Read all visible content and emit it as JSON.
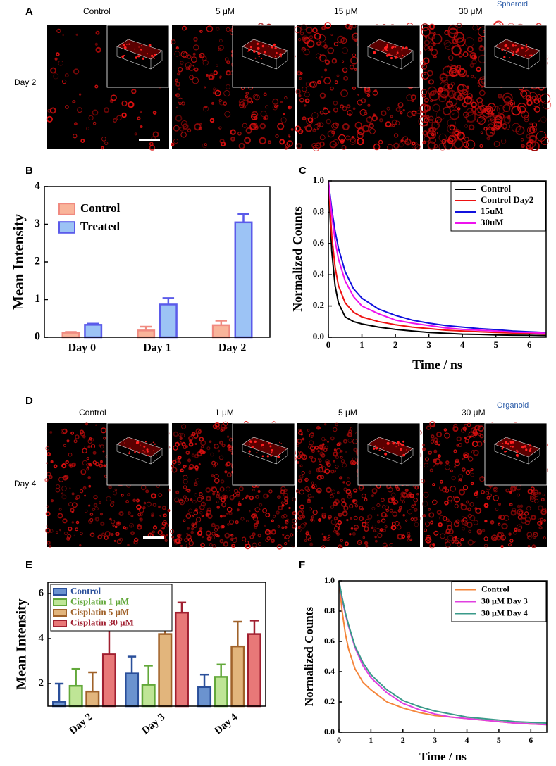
{
  "panel_a": {
    "label": "A",
    "columns": [
      "Control",
      "5 μM",
      "15 μM",
      "30 μM"
    ],
    "row": "Day 2",
    "model": "Spheroid"
  },
  "panel_d": {
    "label": "D",
    "columns": [
      "Control",
      "1 μM",
      "5 μM",
      "30 μM"
    ],
    "row": "Day 4",
    "model": "Organoid"
  },
  "chart_data": [
    {
      "panel_label": "B",
      "type": "bar",
      "ylabel": "Mean Intensity",
      "categories": [
        "Day 0",
        "Day 1",
        "Day 2"
      ],
      "series": [
        {
          "name": "Control",
          "color": "#f9b49a",
          "edge_color": "#f08a80",
          "values": [
            0.12,
            0.18,
            0.32
          ],
          "errors": [
            0.02,
            0.1,
            0.12
          ]
        },
        {
          "name": "Treated",
          "color": "#9cc3f5",
          "edge_color": "#5b5bea",
          "values": [
            0.33,
            0.87,
            3.05
          ],
          "errors": [
            0.03,
            0.17,
            0.22
          ]
        }
      ],
      "ylim": [
        0,
        4
      ],
      "yticks": [
        0,
        1,
        2,
        3,
        4
      ],
      "legend": "upper left",
      "legend_frame": false,
      "legend_text_colored": false,
      "rotate_xticks": false
    },
    {
      "panel_label": "C",
      "type": "line",
      "xlabel": "Time / ns",
      "ylabel": "Normalized Counts",
      "x": [
        0,
        0.1,
        0.2,
        0.3,
        0.5,
        0.75,
        1,
        1.5,
        2,
        2.5,
        3,
        3.5,
        4,
        4.5,
        5,
        5.5,
        6,
        6.5
      ],
      "series": [
        {
          "name": "Control",
          "color": "#000000",
          "values": [
            1.0,
            0.55,
            0.33,
            0.22,
            0.13,
            0.1,
            0.085,
            0.065,
            0.05,
            0.04,
            0.03,
            0.025,
            0.02,
            0.018,
            0.015,
            0.013,
            0.012,
            0.01
          ]
        },
        {
          "name": "Control Day2",
          "color": "#ee1111",
          "values": [
            1.0,
            0.65,
            0.45,
            0.33,
            0.22,
            0.16,
            0.13,
            0.1,
            0.08,
            0.065,
            0.055,
            0.045,
            0.04,
            0.035,
            0.03,
            0.027,
            0.024,
            0.02
          ]
        },
        {
          "name": "15uM",
          "color": "#1111dd",
          "values": [
            1.0,
            0.82,
            0.68,
            0.57,
            0.42,
            0.31,
            0.25,
            0.18,
            0.14,
            0.11,
            0.09,
            0.075,
            0.065,
            0.055,
            0.048,
            0.04,
            0.035,
            0.03
          ]
        },
        {
          "name": "30uM",
          "color": "#ee11ee",
          "values": [
            1.0,
            0.78,
            0.62,
            0.5,
            0.36,
            0.26,
            0.2,
            0.15,
            0.11,
            0.09,
            0.075,
            0.06,
            0.05,
            0.045,
            0.04,
            0.033,
            0.03,
            0.025
          ]
        }
      ],
      "xlim": [
        0,
        6.5
      ],
      "xticks": [
        0,
        1,
        2,
        3,
        4,
        5,
        6
      ],
      "ylim": [
        0,
        1.0
      ],
      "yticks": [
        {
          "value": 0,
          "label": "0.0"
        },
        0.2,
        0.4,
        0.6,
        0.8,
        {
          "value": 1,
          "label": "1.0"
        }
      ],
      "legend": "upper right",
      "legend_frame": true,
      "legend_text_colored": false
    },
    {
      "panel_label": "E",
      "type": "bar",
      "ylabel": "Mean Intensity",
      "categories": [
        "Day 2",
        "Day 3",
        "Day 4"
      ],
      "series": [
        {
          "name": "Control",
          "color": "#6b93cf",
          "edge_color": "#2a4f9a",
          "values": [
            1.2,
            2.45,
            1.85
          ],
          "errors": [
            0.8,
            0.75,
            0.55
          ]
        },
        {
          "name": "Cisplatin 1 μM",
          "color": "#bfe596",
          "edge_color": "#62a83a",
          "values": [
            1.9,
            1.95,
            2.3
          ],
          "errors": [
            0.75,
            0.85,
            0.55
          ]
        },
        {
          "name": "Cisplatin 5 μM",
          "color": "#e2b57c",
          "edge_color": "#a0622a",
          "values": [
            1.65,
            4.2,
            3.65
          ],
          "errors": [
            0.85,
            0.65,
            1.1
          ]
        },
        {
          "name": "Cisplatin 30 μM",
          "color": "#e87878",
          "edge_color": "#a01f30",
          "values": [
            3.3,
            5.15,
            4.2
          ],
          "errors": [
            1.2,
            0.45,
            0.6
          ]
        }
      ],
      "ylim": [
        1,
        6.5
      ],
      "yticks": [
        2,
        4,
        6
      ],
      "legend": "upper left",
      "legend_frame": true,
      "legend_text_colored": true,
      "rotate_xticks": true
    },
    {
      "panel_label": "F",
      "type": "line",
      "xlabel": "Time / ns",
      "ylabel": "Normalized Counts",
      "x": [
        0,
        0.1,
        0.2,
        0.3,
        0.5,
        0.75,
        1,
        1.5,
        2,
        2.5,
        3,
        3.5,
        4,
        4.5,
        5,
        5.5,
        6,
        6.5
      ],
      "series": [
        {
          "name": "Control",
          "color": "#f5853a",
          "values": [
            1.0,
            0.8,
            0.65,
            0.55,
            0.42,
            0.33,
            0.28,
            0.2,
            0.16,
            0.13,
            0.11,
            0.1,
            0.09,
            0.08,
            0.07,
            0.06,
            0.055,
            0.05
          ]
        },
        {
          "name": "30 μM Day 3",
          "color": "#e040e0",
          "values": [
            1.0,
            0.88,
            0.78,
            0.7,
            0.56,
            0.44,
            0.36,
            0.26,
            0.19,
            0.15,
            0.12,
            0.1,
            0.09,
            0.08,
            0.07,
            0.06,
            0.055,
            0.05
          ]
        },
        {
          "name": "30 μM Day 4",
          "color": "#3a9a8a",
          "values": [
            1.0,
            0.89,
            0.79,
            0.71,
            0.57,
            0.46,
            0.38,
            0.28,
            0.21,
            0.17,
            0.14,
            0.12,
            0.1,
            0.09,
            0.08,
            0.07,
            0.065,
            0.06
          ]
        }
      ],
      "xlim": [
        0,
        6.5
      ],
      "xticks": [
        0,
        1,
        2,
        3,
        4,
        5,
        6
      ],
      "ylim": [
        0,
        1.0
      ],
      "yticks": [
        {
          "value": 0,
          "label": "0.0"
        },
        0.2,
        0.4,
        0.6,
        0.8,
        {
          "value": 1,
          "label": "1.0"
        }
      ],
      "legend": "upper right",
      "legend_frame": true,
      "legend_text_colored": false
    }
  ]
}
